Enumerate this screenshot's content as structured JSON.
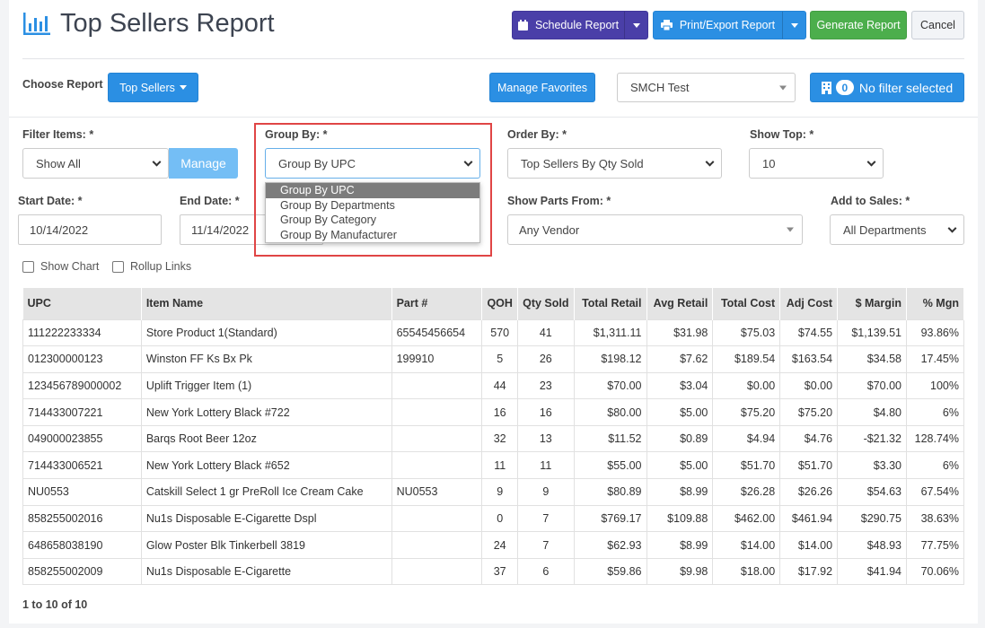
{
  "header": {
    "title": "Top Sellers Report",
    "schedule_label": "Schedule Report",
    "print_label": "Print/Export Report",
    "generate_label": "Generate Report",
    "cancel_label": "Cancel"
  },
  "toolbar": {
    "choose_report_label": "Choose Report",
    "report_type": "Top Sellers",
    "manage_favorites_label": "Manage Favorites",
    "store": "SMCH Test",
    "filter_count": "0",
    "filter_label": "No filter selected"
  },
  "filters": {
    "filter_items_label": "Filter Items: *",
    "filter_items_value": "Show All",
    "manage_label": "Manage",
    "group_by_label": "Group By: *",
    "group_by_value": "Group By UPC",
    "group_by_options": [
      "Group By UPC",
      "Group By Departments",
      "Group By Category",
      "Group By Manufacturer"
    ],
    "order_by_label": "Order By: *",
    "order_by_value": "Top Sellers By Qty Sold",
    "show_top_label": "Show Top: *",
    "show_top_value": "10",
    "start_date_label": "Start Date: *",
    "start_date_value": "10/14/2022",
    "end_date_label": "End Date: *",
    "end_date_value": "11/14/2022",
    "show_parts_label": "Show Parts From: *",
    "show_parts_value": "Any Vendor",
    "add_to_sales_label": "Add to Sales: *",
    "add_to_sales_value": "All Departments",
    "show_chart_label": "Show Chart",
    "rollup_links_label": "Rollup Links"
  },
  "table": {
    "columns": [
      "UPC",
      "Item Name",
      "Part #",
      "QOH",
      "Qty Sold",
      "Total Retail",
      "Avg Retail",
      "Total Cost",
      "Adj Cost",
      "$ Margin",
      "% Mgn"
    ],
    "rows": [
      [
        "111222233334",
        "Store Product 1(Standard)",
        "65545456654",
        "570",
        "41",
        "$1,311.11",
        "$31.98",
        "$75.03",
        "$74.55",
        "$1,139.51",
        "93.86%"
      ],
      [
        "012300000123",
        "Winston FF Ks Bx Pk",
        "199910",
        "5",
        "26",
        "$198.12",
        "$7.62",
        "$189.54",
        "$163.54",
        "$34.58",
        "17.45%"
      ],
      [
        "123456789000002",
        "Uplift Trigger Item (1)",
        "",
        "44",
        "23",
        "$70.00",
        "$3.04",
        "$0.00",
        "$0.00",
        "$70.00",
        "100%"
      ],
      [
        "714433007221",
        "New York Lottery Black #722",
        "",
        "16",
        "16",
        "$80.00",
        "$5.00",
        "$75.20",
        "$75.20",
        "$4.80",
        "6%"
      ],
      [
        "049000023855",
        "Barqs Root Beer 12oz",
        "",
        "32",
        "13",
        "$11.52",
        "$0.89",
        "$4.94",
        "$4.76",
        "-$21.32",
        "128.74%"
      ],
      [
        "714433006521",
        "New York Lottery Black #652",
        "",
        "11",
        "11",
        "$55.00",
        "$5.00",
        "$51.70",
        "$51.70",
        "$3.30",
        "6%"
      ],
      [
        "NU0553",
        "Catskill Select 1 gr PreRoll Ice Cream Cake",
        "NU0553",
        "9",
        "9",
        "$80.89",
        "$8.99",
        "$26.28",
        "$26.26",
        "$54.63",
        "67.54%"
      ],
      [
        "858255002016",
        "Nu1s Disposable E-Cigarette Dspl",
        "",
        "0",
        "7",
        "$769.17",
        "$109.88",
        "$462.00",
        "$461.94",
        "$290.75",
        "38.63%"
      ],
      [
        "648658038190",
        "Glow Poster Blk Tinkerbell 3819",
        "",
        "24",
        "7",
        "$62.93",
        "$8.99",
        "$14.00",
        "$14.00",
        "$48.93",
        "77.75%"
      ],
      [
        "858255002009",
        "Nu1s Disposable E-Cigarette",
        "",
        "37",
        "6",
        "$59.86",
        "$9.98",
        "$18.00",
        "$17.92",
        "$41.94",
        "70.06%"
      ]
    ]
  },
  "pager": "1 to 10 of 10",
  "colors": {
    "accent": "#2b8fe3",
    "purple": "#4a3fa8",
    "green": "#4cae4c",
    "highlight": "#e04545"
  }
}
